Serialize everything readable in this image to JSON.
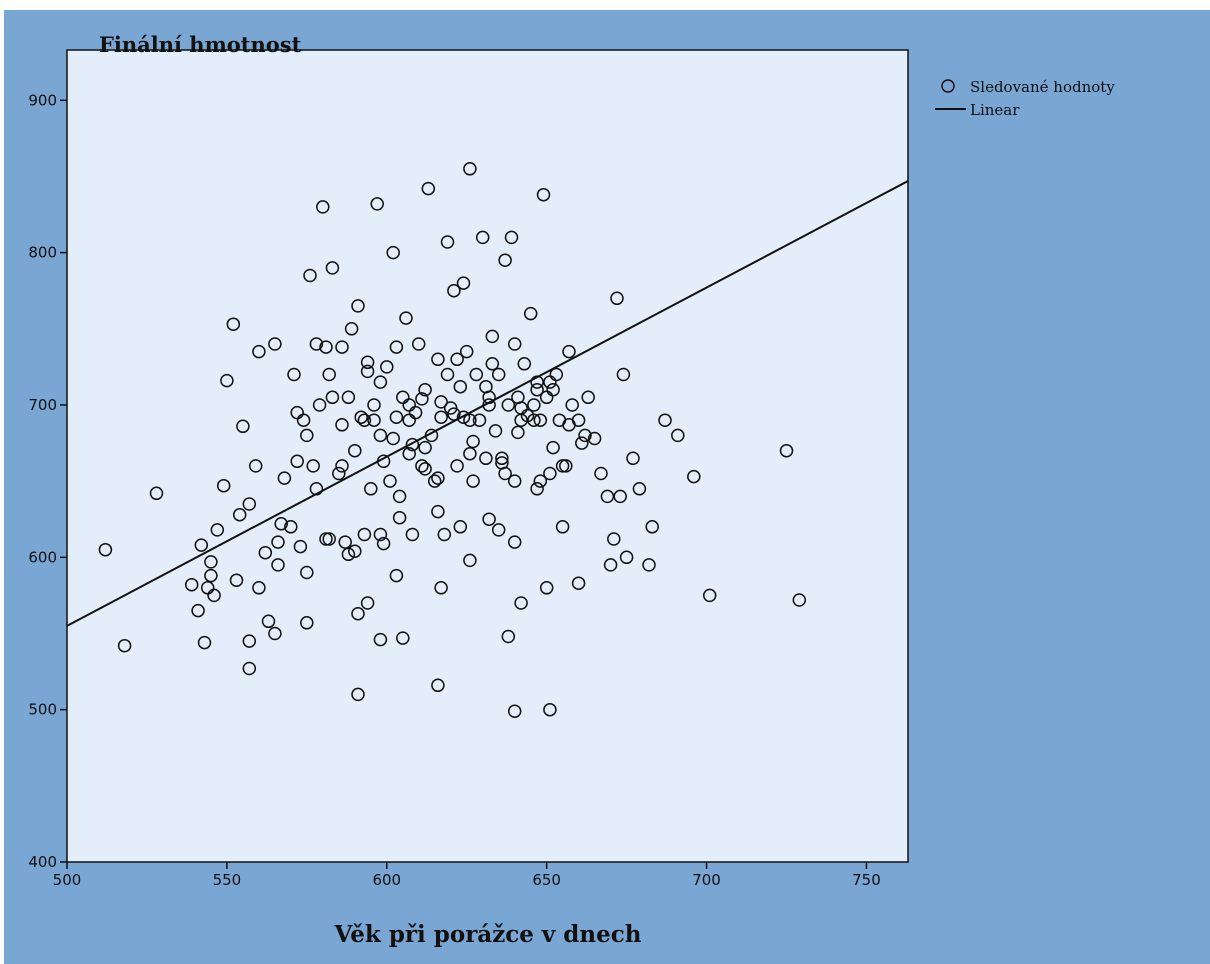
{
  "chart_data": {
    "type": "scatter",
    "title": "Finální hmotnost",
    "xlabel": "Věk při porážce v dnech",
    "ylabel": "",
    "xlim": [
      500,
      763
    ],
    "ylim": [
      400,
      933
    ],
    "xticks": [
      500,
      550,
      600,
      650,
      700,
      750
    ],
    "yticks": [
      400,
      500,
      600,
      700,
      800,
      900
    ],
    "grid": false,
    "legend": {
      "placement": "right-outside-top",
      "entries": [
        {
          "label": "Sledované hodnoty",
          "marker": "circle"
        },
        {
          "label": "Linear",
          "marker": "line"
        }
      ]
    },
    "colors": {
      "frame_background": "#7aa6d4",
      "plot_background": "#e3eefa",
      "marker": "#111111",
      "line": "#111111"
    },
    "series": [
      {
        "name": "Sledované hodnoty",
        "x": [
          512,
          518,
          528,
          539,
          541,
          542,
          543,
          544,
          545,
          545,
          546,
          547,
          549,
          550,
          552,
          553,
          554,
          555,
          557,
          557,
          559,
          560,
          562,
          563,
          565,
          566,
          568,
          570,
          572,
          573,
          575,
          576,
          578,
          579,
          580,
          581,
          582,
          583,
          585,
          586,
          587,
          588,
          590,
          591,
          592,
          593,
          594,
          595,
          596,
          597,
          598,
          598,
          600,
          601,
          602,
          603,
          604,
          605,
          606,
          607,
          608,
          609,
          610,
          611,
          612,
          613,
          614,
          615,
          616,
          617,
          618,
          619,
          620,
          621,
          622,
          623,
          624,
          625,
          626,
          627,
          628,
          629,
          630,
          631,
          632,
          633,
          634,
          635,
          636,
          637,
          638,
          639,
          640,
          641,
          642,
          643,
          644,
          645,
          646,
          647,
          648,
          649,
          650,
          651,
          652,
          653,
          654,
          655,
          657,
          658,
          660,
          662,
          663,
          665,
          667,
          669,
          670,
          671,
          672,
          673,
          674,
          675,
          677,
          679,
          682,
          683,
          687,
          691,
          696,
          701,
          725,
          729,
          560,
          566,
          571,
          574,
          578,
          583,
          588,
          593,
          598,
          602,
          607,
          611,
          616,
          621,
          626,
          631,
          636,
          641,
          646,
          651,
          656,
          661,
          567,
          572,
          577,
          581,
          586,
          590,
          594,
          599,
          603,
          608,
          612,
          617,
          622,
          627,
          632,
          637,
          642,
          647,
          652,
          657,
          575,
          582,
          589,
          596,
          604,
          612,
          619,
          626,
          633,
          640,
          647,
          655,
          591,
          599,
          607,
          616,
          624,
          632,
          640,
          648,
          557,
          565,
          586,
          594,
          603,
          617,
          623,
          635,
          642,
          650,
          591,
          598,
          616,
          626,
          638,
          651,
          575,
          605,
          640,
          660
        ],
        "y": [
          605,
          542,
          642,
          582,
          565,
          608,
          544,
          580,
          588,
          597,
          575,
          618,
          647,
          716,
          753,
          585,
          628,
          686,
          635,
          527,
          660,
          735,
          603,
          558,
          740,
          610,
          652,
          620,
          695,
          607,
          680,
          785,
          645,
          700,
          830,
          612,
          720,
          790,
          655,
          738,
          610,
          705,
          670,
          765,
          692,
          615,
          728,
          645,
          700,
          832,
          680,
          615,
          725,
          650,
          800,
          692,
          640,
          705,
          757,
          668,
          615,
          695,
          740,
          660,
          710,
          842,
          680,
          650,
          730,
          702,
          615,
          807,
          698,
          775,
          660,
          712,
          692,
          735,
          855,
          650,
          720,
          690,
          810,
          665,
          705,
          745,
          683,
          720,
          662,
          795,
          700,
          810,
          740,
          682,
          698,
          727,
          693,
          760,
          700,
          645,
          690,
          838,
          705,
          655,
          710,
          720,
          690,
          660,
          735,
          700,
          690,
          680,
          705,
          678,
          655,
          640,
          595,
          612,
          770,
          640,
          720,
          600,
          665,
          645,
          595,
          620,
          690,
          680,
          653,
          575,
          670,
          572,
          580,
          595,
          720,
          690,
          740,
          705,
          602,
          690,
          715,
          678,
          690,
          704,
          652,
          694,
          668,
          712,
          665,
          705,
          690,
          715,
          660,
          675,
          622,
          663,
          660,
          738,
          687,
          604,
          722,
          663,
          738,
          674,
          658,
          692,
          730,
          676,
          700,
          655,
          690,
          710,
          672,
          687,
          590,
          612,
          750,
          690,
          626,
          672,
          720,
          690,
          727,
          650,
          715,
          620,
          563,
          609,
          700,
          630,
          780,
          625,
          610,
          650,
          545,
          550,
          660,
          570,
          588,
          580,
          620,
          618,
          570,
          580,
          510,
          546,
          516,
          598,
          548,
          500,
          557,
          547,
          499,
          583
        ]
      },
      {
        "name": "Linear",
        "type": "line",
        "x": [
          500,
          763
        ],
        "y": [
          555,
          847
        ]
      }
    ]
  }
}
